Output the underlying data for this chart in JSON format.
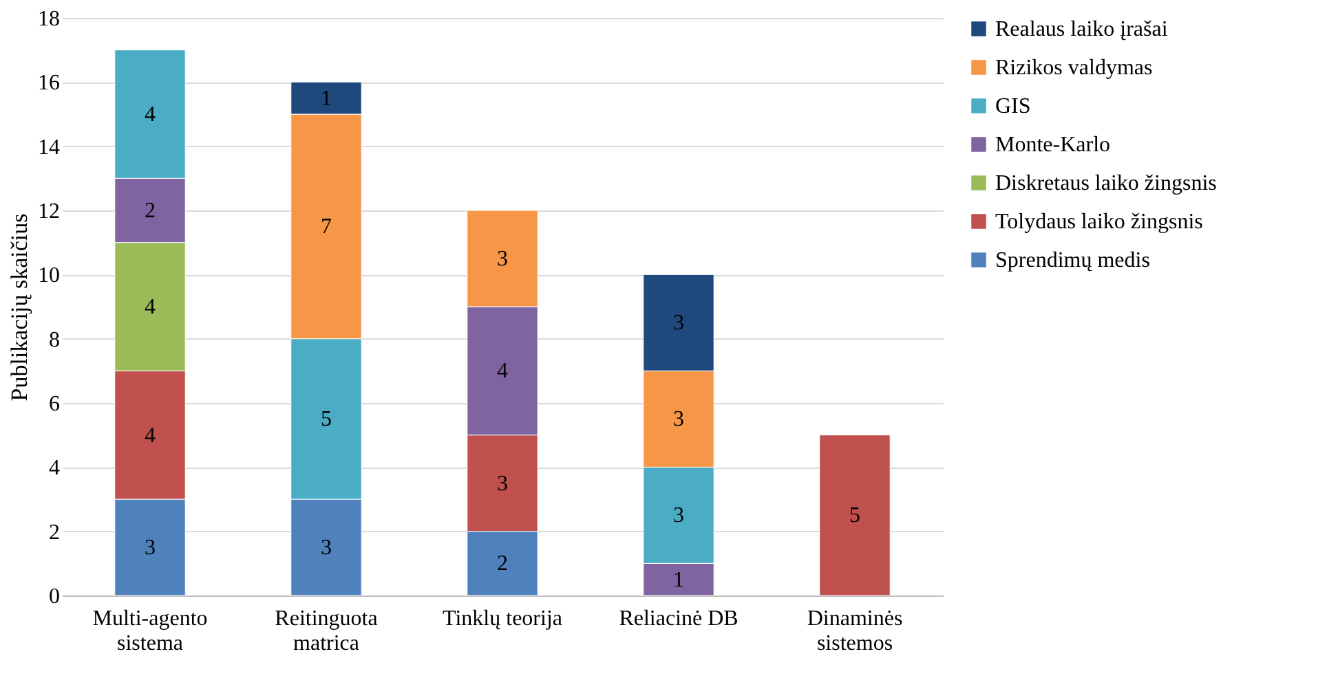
{
  "chart_data": {
    "type": "bar",
    "stacked": true,
    "ylabel": "Publikacijų skaičius",
    "categories": [
      "Multi-agento\nsistema",
      "Reitinguota\nmatrica",
      "Tinklų teorija",
      "Reliacinė DB",
      "Dinaminės\nsistemos"
    ],
    "series": [
      {
        "name": "Sprendimų medis",
        "color": "#4f81bd",
        "values": [
          3,
          3,
          2,
          null,
          null
        ]
      },
      {
        "name": "Tolydaus laiko žingsnis",
        "color": "#c0504d",
        "values": [
          4,
          null,
          3,
          null,
          5
        ]
      },
      {
        "name": "Diskretaus laiko žingsnis",
        "color": "#9bbb59",
        "values": [
          4,
          null,
          null,
          null,
          null
        ]
      },
      {
        "name": "Monte-Karlo",
        "color": "#8064a2",
        "values": [
          2,
          null,
          4,
          1,
          null
        ]
      },
      {
        "name": "GIS",
        "color": "#4bacc6",
        "values": [
          4,
          5,
          null,
          3,
          null
        ]
      },
      {
        "name": "Rizikos valdymas",
        "color": "#f79646",
        "values": [
          null,
          7,
          3,
          3,
          null
        ]
      },
      {
        "name": "Realaus laiko įrašai",
        "color": "#1f497d",
        "values": [
          null,
          1,
          null,
          3,
          null
        ]
      }
    ],
    "ylim": [
      0,
      18
    ],
    "yticks": [
      0,
      2,
      4,
      6,
      8,
      10,
      12,
      14,
      16,
      18
    ],
    "grid": "y",
    "legend": "right",
    "data_labels": true
  }
}
